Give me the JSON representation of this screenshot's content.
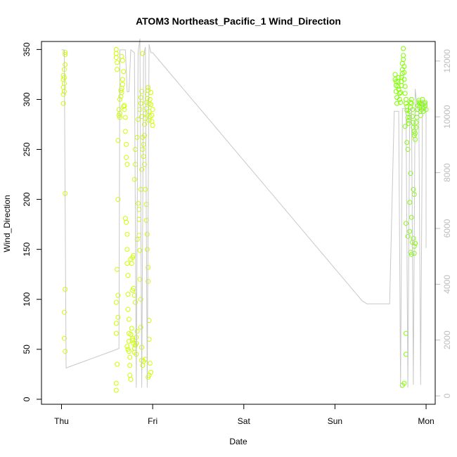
{
  "chart_data": {
    "type": "scatter",
    "title": "ATOM3 Northeast_Pacific_1 Wind_Direction",
    "xlabel": "Date",
    "ylabel": "Wind_Direction",
    "x_unit": "days",
    "x_ticks": [
      {
        "value": 0,
        "label": "Thu"
      },
      {
        "value": 1,
        "label": "Fri"
      },
      {
        "value": 2,
        "label": "Sat"
      },
      {
        "value": 3,
        "label": "Sun"
      },
      {
        "value": 4,
        "label": "Mon"
      }
    ],
    "xlim": [
      -0.22,
      4.1
    ],
    "ylim": [
      -5,
      358
    ],
    "y_ticks": [
      0,
      50,
      100,
      150,
      200,
      250,
      300,
      350
    ],
    "y2lim": [
      -300,
      12700
    ],
    "y2_ticks": [
      0,
      2000,
      4000,
      6000,
      8000,
      10000,
      12000
    ],
    "colors": {
      "early_points": "#ccff00",
      "late_points": "#80ff00",
      "secondary_line": "#c8c8c8",
      "frame": "#000000",
      "secondary_axis": "#bdbdbd"
    },
    "series": [
      {
        "marker": "open-circle",
        "axis": "left",
        "color": "#ccff00",
        "points": [
          [
            0.02,
            320
          ],
          [
            0.02,
            324
          ],
          [
            0.02,
            312
          ],
          [
            0.02,
            305
          ],
          [
            0.02,
            296
          ],
          [
            0.03,
            322
          ],
          [
            0.03,
            316
          ],
          [
            0.03,
            308
          ],
          [
            0.03,
            330
          ],
          [
            0.04,
            345
          ],
          [
            0.04,
            347
          ],
          [
            0.04,
            335
          ],
          [
            0.04,
            206
          ],
          [
            0.04,
            110
          ],
          [
            0.03,
            87
          ],
          [
            0.03,
            61
          ],
          [
            0.04,
            48
          ],
          [
            0.6,
            350
          ],
          [
            0.6,
            346
          ],
          [
            0.6,
            342
          ],
          [
            0.61,
            337
          ],
          [
            0.61,
            330
          ],
          [
            0.6,
            97
          ],
          [
            0.61,
            130
          ],
          [
            0.62,
            200
          ],
          [
            0.62,
            259
          ],
          [
            0.6,
            76
          ],
          [
            0.6,
            66
          ],
          [
            0.61,
            35
          ],
          [
            0.6,
            16
          ],
          [
            0.6,
            9
          ],
          [
            0.62,
            82
          ],
          [
            0.62,
            104
          ],
          [
            0.63,
            284
          ],
          [
            0.63,
            290
          ],
          [
            0.64,
            282
          ],
          [
            0.64,
            286
          ],
          [
            0.64,
            300
          ],
          [
            0.65,
            309
          ],
          [
            0.65,
            303
          ],
          [
            0.66,
            307
          ],
          [
            0.66,
            311
          ],
          [
            0.67,
            315
          ],
          [
            0.67,
            320
          ],
          [
            0.66,
            343
          ],
          [
            0.67,
            339
          ],
          [
            0.68,
            328
          ],
          [
            0.68,
            293
          ],
          [
            0.69,
            290
          ],
          [
            0.69,
            294
          ],
          [
            0.7,
            282
          ],
          [
            0.7,
            268
          ],
          [
            0.71,
            255
          ],
          [
            0.71,
            242
          ],
          [
            0.72,
            235
          ],
          [
            0.7,
            181
          ],
          [
            0.71,
            177
          ],
          [
            0.72,
            165
          ],
          [
            0.72,
            150
          ],
          [
            0.72,
            136
          ],
          [
            0.73,
            124
          ],
          [
            0.73,
            105
          ],
          [
            0.73,
            90
          ],
          [
            0.74,
            80
          ],
          [
            0.74,
            66
          ],
          [
            0.74,
            58
          ],
          [
            0.74,
            48
          ],
          [
            0.75,
            42
          ],
          [
            0.75,
            34
          ],
          [
            0.75,
            24
          ],
          [
            0.76,
            20
          ],
          [
            0.72,
            53
          ],
          [
            0.73,
            50
          ],
          [
            0.76,
            65
          ],
          [
            0.77,
            71
          ],
          [
            0.78,
            61
          ],
          [
            0.78,
            59
          ],
          [
            0.79,
            56
          ],
          [
            0.8,
            51
          ],
          [
            0.8,
            47
          ],
          [
            0.81,
            54
          ],
          [
            0.82,
            45
          ],
          [
            0.82,
            56
          ],
          [
            0.82,
            62
          ],
          [
            0.83,
            68
          ],
          [
            0.78,
            109
          ],
          [
            0.79,
            111
          ],
          [
            0.8,
            104
          ],
          [
            0.81,
            97
          ],
          [
            0.76,
            140
          ],
          [
            0.77,
            136
          ],
          [
            0.78,
            142
          ],
          [
            0.79,
            144
          ],
          [
            0.8,
            220
          ],
          [
            0.81,
            235
          ],
          [
            0.81,
            250
          ],
          [
            0.83,
            262
          ],
          [
            0.84,
            280
          ],
          [
            0.85,
            190
          ],
          [
            0.85,
            180
          ],
          [
            0.85,
            164
          ],
          [
            0.86,
            149
          ],
          [
            0.86,
            120
          ],
          [
            0.87,
            100
          ],
          [
            0.87,
            72
          ],
          [
            0.88,
            52
          ],
          [
            0.88,
            39
          ],
          [
            0.89,
            34
          ],
          [
            0.89,
            346
          ],
          [
            0.88,
            230
          ],
          [
            0.87,
            210
          ],
          [
            0.84,
            196
          ],
          [
            0.83,
            160
          ],
          [
            0.86,
            290
          ],
          [
            0.87,
            296
          ],
          [
            0.87,
            302
          ],
          [
            0.88,
            308
          ],
          [
            0.88,
            283
          ],
          [
            0.89,
            262
          ],
          [
            0.89,
            250
          ],
          [
            0.9,
            243
          ],
          [
            0.9,
            255
          ],
          [
            0.91,
            264
          ],
          [
            0.91,
            275
          ],
          [
            0.92,
            281
          ],
          [
            0.92,
            286
          ],
          [
            0.93,
            291
          ],
          [
            0.93,
            297
          ],
          [
            0.94,
            301
          ],
          [
            0.94,
            305
          ],
          [
            0.95,
            309
          ],
          [
            0.95,
            312
          ],
          [
            0.96,
            296
          ],
          [
            0.96,
            288
          ],
          [
            0.96,
            279
          ],
          [
            0.97,
            283
          ],
          [
            0.97,
            300
          ],
          [
            0.98,
            307
          ],
          [
            0.98,
            295
          ],
          [
            0.99,
            284
          ],
          [
            0.99,
            278
          ],
          [
            1.0,
            274
          ],
          [
            1.0,
            290
          ],
          [
            0.91,
            235
          ],
          [
            0.92,
            210
          ],
          [
            0.93,
            195
          ],
          [
            0.93,
            179
          ],
          [
            0.94,
            165
          ],
          [
            0.94,
            150
          ],
          [
            0.95,
            132
          ],
          [
            0.95,
            118
          ],
          [
            0.96,
            79
          ],
          [
            0.96,
            60
          ],
          [
            0.97,
            36
          ],
          [
            0.98,
            27
          ],
          [
            0.96,
            24
          ],
          [
            0.95,
            22
          ],
          [
            0.92,
            40
          ],
          [
            0.9,
            38
          ]
        ]
      },
      {
        "marker": "open-circle",
        "axis": "left",
        "color": "#80ff00",
        "points": [
          [
            3.66,
            325
          ],
          [
            3.66,
            320
          ],
          [
            3.67,
            318
          ],
          [
            3.67,
            314
          ],
          [
            3.67,
            308
          ],
          [
            3.68,
            302
          ],
          [
            3.68,
            296
          ],
          [
            3.69,
            313
          ],
          [
            3.69,
            318
          ],
          [
            3.7,
            322
          ],
          [
            3.7,
            310
          ],
          [
            3.71,
            306
          ],
          [
            3.71,
            300
          ],
          [
            3.72,
            297
          ],
          [
            3.72,
            307
          ],
          [
            3.73,
            314
          ],
          [
            3.73,
            318
          ],
          [
            3.73,
            322
          ],
          [
            3.74,
            326
          ],
          [
            3.74,
            330
          ],
          [
            3.74,
            336
          ],
          [
            3.75,
            340
          ],
          [
            3.75,
            344
          ],
          [
            3.75,
            351
          ],
          [
            3.76,
            333
          ],
          [
            3.76,
            327
          ],
          [
            3.76,
            320
          ],
          [
            3.77,
            313
          ],
          [
            3.77,
            306
          ],
          [
            3.78,
            300
          ],
          [
            3.78,
            296
          ],
          [
            3.79,
            293
          ],
          [
            3.79,
            289
          ],
          [
            3.8,
            286
          ],
          [
            3.8,
            282
          ],
          [
            3.81,
            279
          ],
          [
            3.81,
            276
          ],
          [
            3.82,
            282
          ],
          [
            3.82,
            288
          ],
          [
            3.83,
            292
          ],
          [
            3.83,
            297
          ],
          [
            3.84,
            300
          ],
          [
            3.84,
            296
          ],
          [
            3.85,
            290
          ],
          [
            3.85,
            283
          ],
          [
            3.86,
            277
          ],
          [
            3.86,
            272
          ],
          [
            3.87,
            268
          ],
          [
            3.87,
            264
          ],
          [
            3.88,
            260
          ],
          [
            3.88,
            266
          ],
          [
            3.89,
            272
          ],
          [
            3.89,
            277
          ],
          [
            3.9,
            282
          ],
          [
            3.9,
            286
          ],
          [
            3.91,
            290
          ],
          [
            3.91,
            294
          ],
          [
            3.92,
            297
          ],
          [
            3.92,
            299
          ],
          [
            3.93,
            296
          ],
          [
            3.93,
            292
          ],
          [
            3.94,
            288
          ],
          [
            3.94,
            284
          ],
          [
            3.95,
            290
          ],
          [
            3.95,
            296
          ],
          [
            3.96,
            300
          ],
          [
            3.96,
            295
          ],
          [
            3.97,
            291
          ],
          [
            3.97,
            288
          ],
          [
            3.98,
            292
          ],
          [
            3.98,
            296
          ],
          [
            3.99,
            297
          ],
          [
            3.99,
            294
          ],
          [
            4.0,
            290
          ],
          [
            3.77,
            273
          ],
          [
            3.79,
            257
          ],
          [
            3.8,
            250
          ],
          [
            3.83,
            226
          ],
          [
            3.82,
            197
          ],
          [
            3.84,
            182
          ],
          [
            3.82,
            168
          ],
          [
            3.8,
            163
          ],
          [
            3.78,
            176
          ],
          [
            3.83,
            147
          ],
          [
            3.84,
            145
          ],
          [
            3.85,
            157
          ],
          [
            3.86,
            161
          ],
          [
            3.87,
            153
          ],
          [
            3.88,
            156
          ],
          [
            3.87,
            146
          ],
          [
            3.86,
            210
          ],
          [
            3.87,
            205
          ],
          [
            3.74,
            14
          ],
          [
            3.76,
            16
          ],
          [
            3.78,
            45
          ],
          [
            3.78,
            66
          ]
        ]
      },
      {
        "marker": "line",
        "axis": "right",
        "color": "#c8c8c8",
        "points": [
          [
            0.0,
            12400
          ],
          [
            0.03,
            12400
          ],
          [
            0.05,
            1000
          ],
          [
            0.3,
            1300
          ],
          [
            0.55,
            1600
          ],
          [
            0.63,
            1700
          ],
          [
            0.64,
            12400
          ],
          [
            0.7,
            12400
          ],
          [
            0.72,
            10900
          ],
          [
            0.74,
            10900
          ],
          [
            0.76,
            12400
          ],
          [
            0.8,
            12300
          ],
          [
            0.82,
            300
          ],
          [
            0.84,
            12300
          ],
          [
            0.86,
            12800
          ],
          [
            0.88,
            300
          ],
          [
            0.9,
            12200
          ],
          [
            0.92,
            12500
          ],
          [
            0.94,
            300
          ],
          [
            0.96,
            12600
          ],
          [
            0.98,
            12300
          ],
          [
            1.0,
            12300
          ],
          [
            3.3,
            3400
          ],
          [
            3.35,
            3300
          ],
          [
            3.6,
            3300
          ],
          [
            3.65,
            10200
          ],
          [
            3.7,
            10200
          ],
          [
            3.72,
            300
          ],
          [
            3.74,
            10300
          ],
          [
            3.78,
            10300
          ],
          [
            3.8,
            300
          ],
          [
            3.82,
            10200
          ],
          [
            3.84,
            10300
          ],
          [
            3.86,
            400
          ],
          [
            3.88,
            11000
          ],
          [
            3.9,
            10400
          ],
          [
            3.92,
            10200
          ],
          [
            3.94,
            400
          ],
          [
            3.96,
            10600
          ],
          [
            4.0,
            10400
          ],
          [
            4.0,
            5300
          ]
        ]
      }
    ]
  }
}
